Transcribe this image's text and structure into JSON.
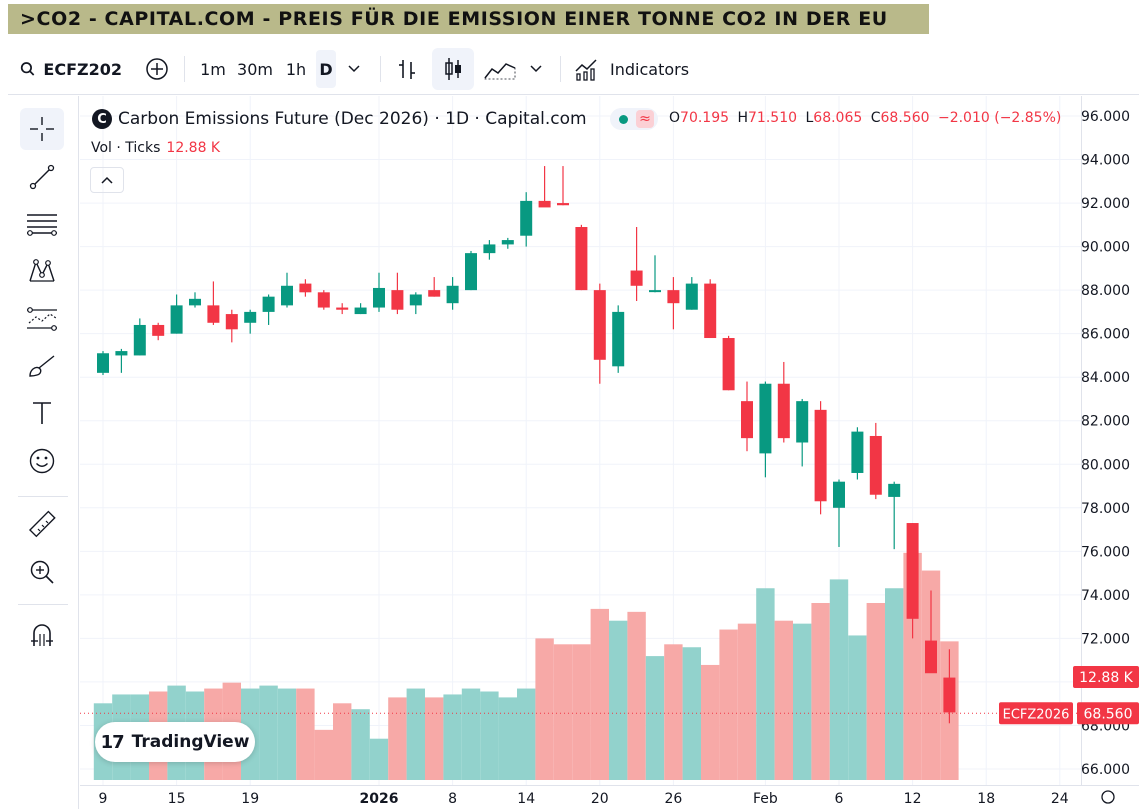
{
  "banner": {
    "title": ">CO2 - CAPITAL.COM - PREIS FÜR DIE EMISSION EINER TONNE CO2 IN DER EU"
  },
  "toolbar": {
    "symbol": "ECFZ202",
    "intervals": [
      "1m",
      "30m",
      "1h",
      "D"
    ],
    "indicators_label": "Indicators"
  },
  "legend": {
    "title": "Carbon Emissions Future (Dec 2026) · 1D · Capital.com",
    "logo_letter": "C",
    "wave_glyph": "≈",
    "ohlc": {
      "o_label": "O",
      "o": "70.195",
      "h_label": "H",
      "h": "71.510",
      "l_label": "L",
      "l": "68.065",
      "c_label": "C",
      "c": "68.560",
      "change": "−2.010 (−2.85%)"
    },
    "vol_label": "Vol · Ticks",
    "vol_value": "12.88 K"
  },
  "branding": {
    "name": "TradingView",
    "mark": "17"
  },
  "colors": {
    "up": "#089981",
    "down": "#f23645",
    "up_vol": "#92d2cc",
    "down_vol": "#f7a9a7",
    "banner": "#b9b98a"
  },
  "chart_data": {
    "type": "candlestick",
    "title": "Carbon Emissions Future (Dec 2026) · 1D · Capital.com",
    "symbol_tag": "ECFZ2026",
    "last_price": "68.560",
    "last_volume_label": "12.88 K",
    "ylim": [
      65.2,
      96.6
    ],
    "y_ticks": [
      "96.000",
      "94.000",
      "92.000",
      "90.000",
      "88.000",
      "86.000",
      "84.000",
      "82.000",
      "80.000",
      "78.000",
      "76.000",
      "74.000",
      "72.000",
      "70.000",
      "68.000",
      "66.000"
    ],
    "x_ticks": [
      {
        "label": "9",
        "index": 0
      },
      {
        "label": "15",
        "index": 4
      },
      {
        "label": "19",
        "index": 8
      },
      {
        "label": "2026",
        "index": 15,
        "bold": true
      },
      {
        "label": "8",
        "index": 19
      },
      {
        "label": "14",
        "index": 23
      },
      {
        "label": "20",
        "index": 27
      },
      {
        "label": "26",
        "index": 31
      },
      {
        "label": "Feb",
        "index": 36
      },
      {
        "label": "6",
        "index": 40
      },
      {
        "label": "12",
        "index": 44
      },
      {
        "label": "18",
        "index": 48
      },
      {
        "label": "24",
        "index": 52
      }
    ],
    "candles": [
      {
        "o": 84.2,
        "h": 85.2,
        "l": 84.1,
        "c": 85.1
      },
      {
        "o": 85.0,
        "h": 85.3,
        "l": 84.2,
        "c": 85.2
      },
      {
        "o": 85.0,
        "h": 86.7,
        "l": 85.0,
        "c": 86.4
      },
      {
        "o": 86.4,
        "h": 86.5,
        "l": 85.7,
        "c": 85.9
      },
      {
        "o": 86.0,
        "h": 87.8,
        "l": 86.0,
        "c": 87.3
      },
      {
        "o": 87.3,
        "h": 87.9,
        "l": 87.2,
        "c": 87.6
      },
      {
        "o": 87.3,
        "h": 88.4,
        "l": 86.4,
        "c": 86.5
      },
      {
        "o": 86.9,
        "h": 87.1,
        "l": 85.6,
        "c": 86.2
      },
      {
        "o": 86.5,
        "h": 87.1,
        "l": 86.0,
        "c": 87.0
      },
      {
        "o": 87.0,
        "h": 87.8,
        "l": 86.4,
        "c": 87.7
      },
      {
        "o": 87.3,
        "h": 88.8,
        "l": 87.2,
        "c": 88.2
      },
      {
        "o": 88.3,
        "h": 88.5,
        "l": 87.7,
        "c": 87.9
      },
      {
        "o": 87.9,
        "h": 88.0,
        "l": 87.1,
        "c": 87.2
      },
      {
        "o": 87.2,
        "h": 87.4,
        "l": 86.9,
        "c": 87.1
      },
      {
        "o": 86.9,
        "h": 87.4,
        "l": 86.9,
        "c": 87.2
      },
      {
        "o": 87.2,
        "h": 88.8,
        "l": 87.0,
        "c": 88.1
      },
      {
        "o": 88.0,
        "h": 88.8,
        "l": 86.9,
        "c": 87.1
      },
      {
        "o": 87.3,
        "h": 87.9,
        "l": 86.9,
        "c": 87.8
      },
      {
        "o": 88.0,
        "h": 88.6,
        "l": 87.7,
        "c": 87.7
      },
      {
        "o": 87.4,
        "h": 88.6,
        "l": 87.1,
        "c": 88.2
      },
      {
        "o": 88.0,
        "h": 89.8,
        "l": 88.0,
        "c": 89.7
      },
      {
        "o": 89.7,
        "h": 90.3,
        "l": 89.4,
        "c": 90.1
      },
      {
        "o": 90.1,
        "h": 90.4,
        "l": 89.9,
        "c": 90.3
      },
      {
        "o": 90.5,
        "h": 92.5,
        "l": 90.0,
        "c": 92.1
      },
      {
        "o": 92.1,
        "h": 93.7,
        "l": 91.9,
        "c": 91.8
      },
      {
        "o": 92.0,
        "h": 93.7,
        "l": 91.9,
        "c": 91.9
      },
      {
        "o": 90.9,
        "h": 91.0,
        "l": 88.0,
        "c": 88.0
      },
      {
        "o": 88.0,
        "h": 88.3,
        "l": 83.7,
        "c": 84.8
      },
      {
        "o": 84.5,
        "h": 87.3,
        "l": 84.2,
        "c": 87.0
      },
      {
        "o": 88.9,
        "h": 90.9,
        "l": 87.5,
        "c": 88.2
      },
      {
        "o": 88.0,
        "h": 89.6,
        "l": 87.9,
        "c": 88.0
      },
      {
        "o": 88.0,
        "h": 88.6,
        "l": 86.2,
        "c": 87.4
      },
      {
        "o": 87.1,
        "h": 88.6,
        "l": 87.1,
        "c": 88.3
      },
      {
        "o": 88.3,
        "h": 88.5,
        "l": 85.8,
        "c": 85.8
      },
      {
        "o": 85.8,
        "h": 85.9,
        "l": 83.4,
        "c": 83.4
      },
      {
        "o": 82.9,
        "h": 83.8,
        "l": 80.6,
        "c": 81.2
      },
      {
        "o": 80.5,
        "h": 83.8,
        "l": 79.4,
        "c": 83.7
      },
      {
        "o": 83.7,
        "h": 84.7,
        "l": 81.0,
        "c": 81.2
      },
      {
        "o": 81.0,
        "h": 83.0,
        "l": 79.9,
        "c": 82.9
      },
      {
        "o": 82.5,
        "h": 82.9,
        "l": 77.7,
        "c": 78.3
      },
      {
        "o": 78.0,
        "h": 79.3,
        "l": 76.2,
        "c": 79.2
      },
      {
        "o": 79.6,
        "h": 81.7,
        "l": 79.3,
        "c": 81.5
      },
      {
        "o": 81.3,
        "h": 81.9,
        "l": 78.4,
        "c": 78.6
      },
      {
        "o": 78.5,
        "h": 79.2,
        "l": 76.1,
        "c": 79.1
      },
      {
        "o": 77.3,
        "h": 77.3,
        "l": 72.0,
        "c": 72.9
      },
      {
        "o": 71.9,
        "h": 74.2,
        "l": 70.5,
        "c": 70.4
      },
      {
        "o": 70.2,
        "h": 71.5,
        "l": 68.1,
        "c": 68.6
      }
    ],
    "volumes": [
      2.6,
      2.9,
      2.9,
      3.0,
      3.2,
      3.0,
      3.1,
      3.3,
      3.1,
      3.2,
      3.1,
      3.1,
      1.7,
      2.6,
      2.4,
      1.4,
      2.8,
      3.1,
      2.8,
      2.9,
      3.1,
      3.0,
      2.8,
      3.1,
      4.8,
      4.6,
      4.6,
      5.8,
      5.4,
      5.7,
      4.2,
      4.6,
      4.5,
      3.9,
      5.1,
      5.3,
      6.5,
      5.4,
      5.3,
      6.0,
      6.8,
      4.9,
      6.0,
      6.5,
      7.7,
      7.1,
      4.7
    ],
    "vol_max_ratio_reference": 8.0
  }
}
